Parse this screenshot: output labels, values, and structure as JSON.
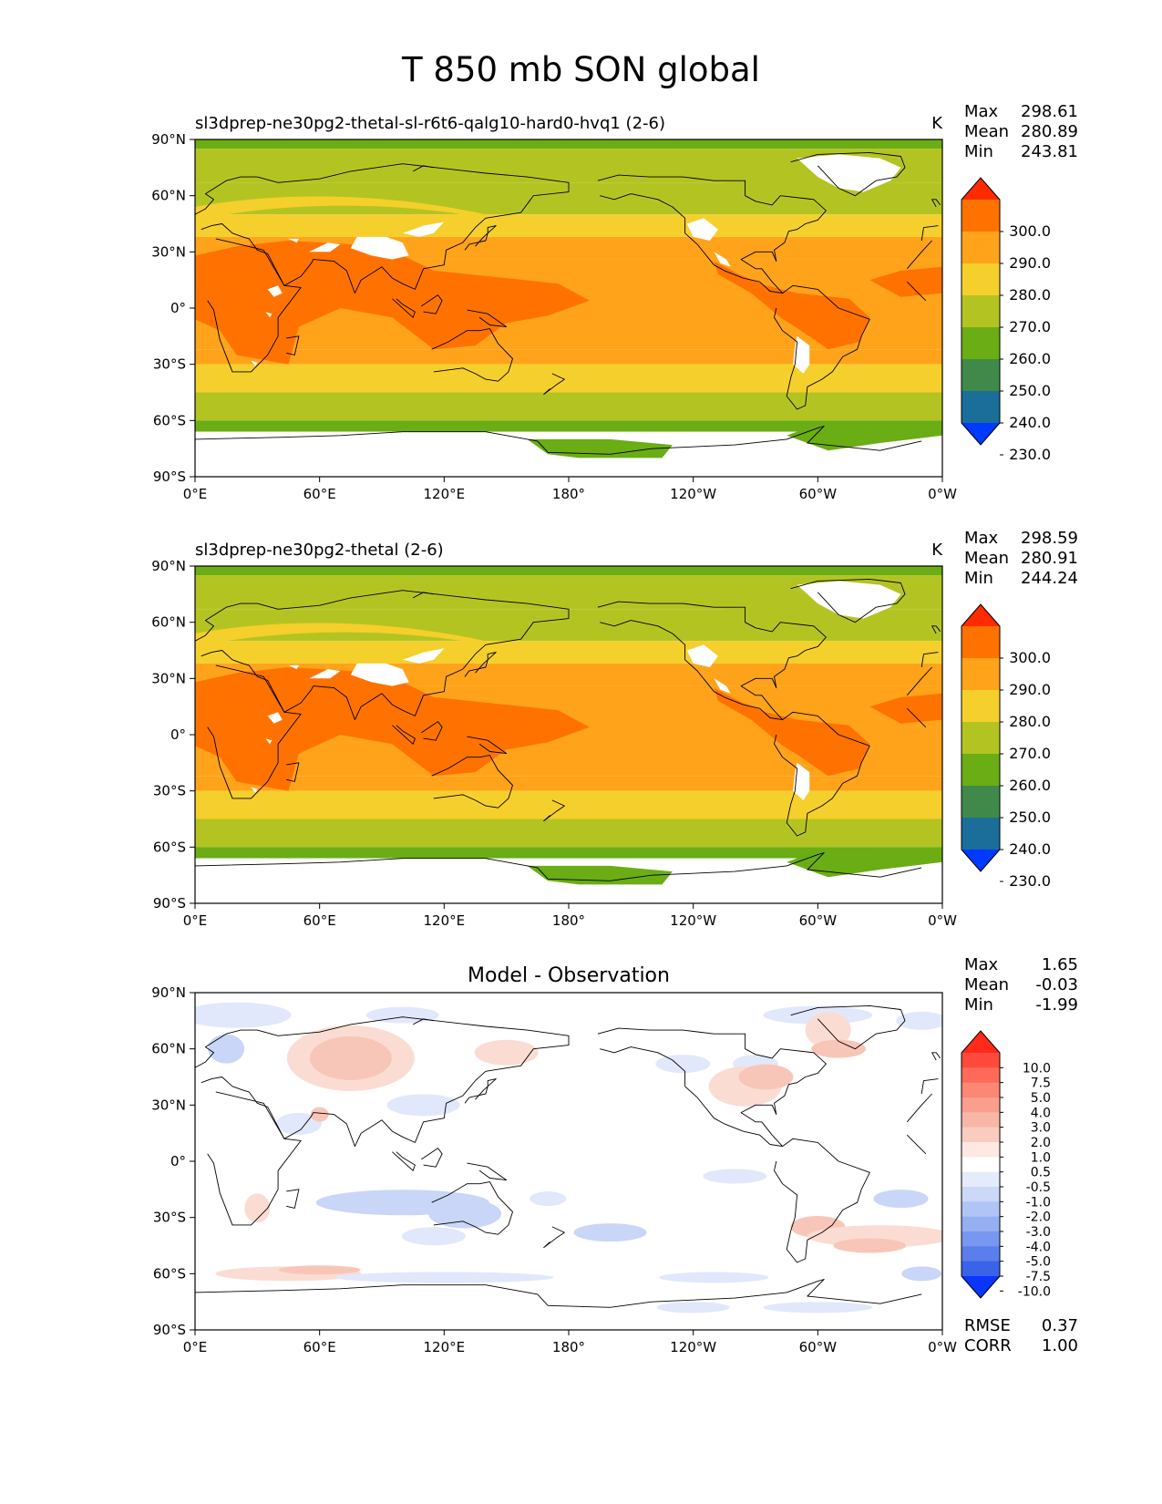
{
  "figure": {
    "title": "T 850 mb SON global"
  },
  "lon_tick_labels": [
    "0°E",
    "60°E",
    "120°E",
    "180°",
    "120°W",
    "60°W",
    "0°W"
  ],
  "lat_tick_labels": [
    "90°N",
    "60°N",
    "30°N",
    "0°",
    "30°S",
    "60°S",
    "90°S"
  ],
  "panels": [
    {
      "title_left": "sl3dprep-ne30pg2-thetal-sl-r6t6-qalg10-hard0-hvq1 (2-6)",
      "title_right": "K",
      "title_center": "",
      "stats": [
        {
          "label": "Max",
          "value": "298.61"
        },
        {
          "label": "Mean",
          "value": "280.89"
        },
        {
          "label": "Min",
          "value": "243.81"
        }
      ],
      "colorbar": {
        "labels": [
          "300.0",
          "290.0",
          "280.0",
          "270.0",
          "260.0",
          "250.0",
          "240.0",
          "230.0"
        ],
        "colors": [
          "#ff2a00",
          "#ff7200",
          "#ffa31a",
          "#f5cf2b",
          "#b3c422",
          "#6aad14",
          "#3f8a4a",
          "#1a6e99",
          "#0039ff"
        ]
      },
      "footer": []
    },
    {
      "title_left": "sl3dprep-ne30pg2-thetal (2-6)",
      "title_right": "K",
      "title_center": "",
      "stats": [
        {
          "label": "Max",
          "value": "298.59"
        },
        {
          "label": "Mean",
          "value": "280.91"
        },
        {
          "label": "Min",
          "value": "244.24"
        }
      ],
      "colorbar": {
        "labels": [
          "300.0",
          "290.0",
          "280.0",
          "270.0",
          "260.0",
          "250.0",
          "240.0",
          "230.0"
        ],
        "colors": [
          "#ff2a00",
          "#ff7200",
          "#ffa31a",
          "#f5cf2b",
          "#b3c422",
          "#6aad14",
          "#3f8a4a",
          "#1a6e99",
          "#0039ff"
        ]
      },
      "footer": []
    },
    {
      "title_left": "",
      "title_right": "",
      "title_center": "Model - Observation",
      "stats": [
        {
          "label": "Max",
          "value": "1.65"
        },
        {
          "label": "Mean",
          "value": "-0.03"
        },
        {
          "label": "Min",
          "value": "-1.99"
        }
      ],
      "colorbar": {
        "labels": [
          "10.0",
          "7.5",
          "5.0",
          "4.0",
          "3.0",
          "2.0",
          "1.0",
          "0.5",
          "-0.5",
          "-1.0",
          "-2.0",
          "-3.0",
          "-4.0",
          "-5.0",
          "-7.5",
          "-10.0"
        ],
        "colors": [
          "#ff2a1a",
          "#fe4a3c",
          "#fd6a5a",
          "#fb8774",
          "#fa9f8d",
          "#f8b7a6",
          "#f8cdc0",
          "#fde8e2",
          "#ffffff",
          "#e4ebfb",
          "#ccd8f8",
          "#b1c4f6",
          "#95aff3",
          "#7897f0",
          "#5a7eec",
          "#3a63e8",
          "#0a35ff"
        ]
      },
      "footer": [
        {
          "label": "RMSE",
          "value": "0.37"
        },
        {
          "label": "CORR",
          "value": "1.00"
        }
      ]
    }
  ],
  "chart_data": [
    {
      "type": "heatmap",
      "title": "sl3dprep-ne30pg2-thetal-sl-r6t6-qalg10-hard0-hvq1 (2-6)",
      "units": "K",
      "x_range": [
        0,
        360
      ],
      "y_range": [
        -90,
        90
      ],
      "levels": [
        230,
        240,
        250,
        260,
        270,
        280,
        290,
        300
      ],
      "stats": {
        "max": 298.61,
        "mean": 280.89,
        "min": 243.81
      }
    },
    {
      "type": "heatmap",
      "title": "sl3dprep-ne30pg2-thetal (2-6)",
      "units": "K",
      "x_range": [
        0,
        360
      ],
      "y_range": [
        -90,
        90
      ],
      "levels": [
        230,
        240,
        250,
        260,
        270,
        280,
        290,
        300
      ],
      "stats": {
        "max": 298.59,
        "mean": 280.91,
        "min": 244.24
      }
    },
    {
      "type": "heatmap",
      "title": "Model - Observation",
      "x_range": [
        0,
        360
      ],
      "y_range": [
        -90,
        90
      ],
      "levels": [
        -10,
        -7.5,
        -5,
        -4,
        -3,
        -2,
        -1,
        -0.5,
        0.5,
        1,
        2,
        3,
        4,
        5,
        7.5,
        10
      ],
      "stats": {
        "max": 1.65,
        "mean": -0.03,
        "min": -1.99,
        "rmse": 0.37,
        "corr": 1.0
      }
    }
  ]
}
